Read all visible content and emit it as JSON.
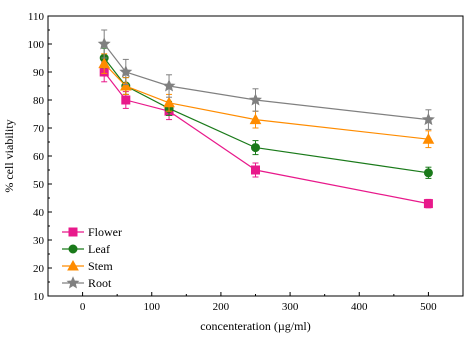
{
  "chart_data": {
    "type": "line",
    "xlabel": "concenteration (µg/ml)",
    "ylabel": "% cell viability",
    "xlim": [
      -50,
      550
    ],
    "ylim": [
      10,
      110
    ],
    "xticks": [
      0,
      100,
      200,
      300,
      400,
      500
    ],
    "yticks": [
      10,
      20,
      30,
      40,
      50,
      60,
      70,
      80,
      90,
      100,
      110
    ],
    "x": [
      31.25,
      62.5,
      125,
      250,
      500
    ],
    "grid": false,
    "legend_position": "bottom-left",
    "series": [
      {
        "name": "Flower",
        "color": "#e8198b",
        "marker": "square",
        "values": [
          90,
          80,
          76,
          55,
          43
        ],
        "errors": [
          3.5,
          3,
          3,
          2.5,
          1.5
        ]
      },
      {
        "name": "Leaf",
        "color": "#1a7a1a",
        "marker": "circle",
        "values": [
          95,
          85,
          77,
          63,
          54
        ],
        "errors": [
          3.5,
          3,
          2.5,
          2.5,
          2
        ]
      },
      {
        "name": "Stem",
        "color": "#ff8c00",
        "marker": "triangle",
        "values": [
          93,
          85,
          79,
          73,
          66
        ],
        "errors": [
          3.5,
          3,
          3,
          3,
          3
        ]
      },
      {
        "name": "Root",
        "color": "#808080",
        "marker": "star",
        "values": [
          100,
          90,
          85,
          80,
          73
        ],
        "errors": [
          5,
          4.5,
          4,
          4,
          3.5
        ]
      }
    ]
  }
}
